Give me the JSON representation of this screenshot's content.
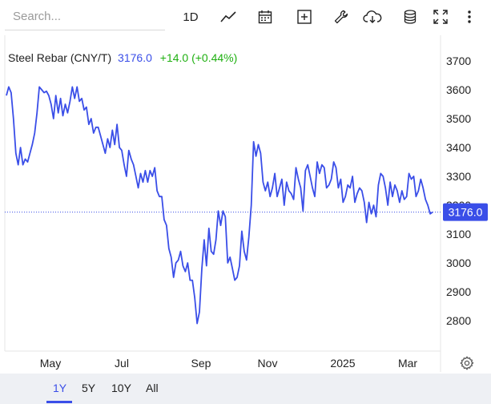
{
  "toolbar": {
    "search_placeholder": "Search...",
    "interval_label": "1D",
    "icons": [
      "line-chart-icon",
      "calendar-icon",
      "add-indicator-icon",
      "wrench-icon",
      "cloud-download-icon",
      "database-icon",
      "fullscreen-icon",
      "more-icon"
    ]
  },
  "header": {
    "name": "Steel Rebar (CNY/T)",
    "price": "3176.0",
    "change": "+14.0 (+0.44%)"
  },
  "colors": {
    "line": "#3a4ee8",
    "change_positive": "#1fb011",
    "price_tag_bg": "#3a4ee8",
    "range_bar_bg": "#eef0f4"
  },
  "ranges": {
    "buttons": [
      "1Y",
      "5Y",
      "10Y",
      "All"
    ],
    "active": "1Y"
  },
  "chart_data": {
    "type": "line",
    "title": "Steel Rebar (CNY/T)",
    "x_tick_labels": [
      "May",
      "Jul",
      "Sep",
      "Nov",
      "2025",
      "Mar"
    ],
    "y_ticks": [
      2800,
      2900,
      3000,
      3100,
      3200,
      3300,
      3400,
      3500,
      3600,
      3700
    ],
    "ylim": [
      2740,
      3740
    ],
    "last_value_label": "3176.0",
    "last_value": 3176,
    "grid": false,
    "series": [
      {
        "values": [
          3580,
          3610,
          3590,
          3500,
          3380,
          3340,
          3400,
          3340,
          3360,
          3350,
          3380,
          3410,
          3450,
          3520,
          3610,
          3600,
          3590,
          3595,
          3580,
          3550,
          3500,
          3580,
          3520,
          3570,
          3510,
          3550,
          3520,
          3560,
          3610,
          3570,
          3610,
          3560,
          3570,
          3530,
          3540,
          3480,
          3500,
          3450,
          3470,
          3470,
          3440,
          3410,
          3380,
          3430,
          3400,
          3460,
          3410,
          3480,
          3400,
          3390,
          3340,
          3300,
          3390,
          3360,
          3340,
          3300,
          3260,
          3310,
          3280,
          3320,
          3280,
          3320,
          3300,
          3330,
          3250,
          3230,
          3230,
          3150,
          3130,
          3050,
          3020,
          2950,
          3000,
          3010,
          3040,
          2990,
          2970,
          3000,
          2940,
          2940,
          2880,
          2790,
          2830,
          2980,
          3080,
          2990,
          3120,
          3040,
          3030,
          3080,
          3180,
          3130,
          3180,
          3160,
          3000,
          3020,
          2980,
          2940,
          2950,
          2990,
          3110,
          3040,
          3010,
          3090,
          3200,
          3420,
          3370,
          3410,
          3380,
          3280,
          3250,
          3280,
          3230,
          3260,
          3310,
          3230,
          3260,
          3290,
          3200,
          3280,
          3250,
          3240,
          3220,
          3330,
          3290,
          3260,
          3180,
          3320,
          3340,
          3300,
          3260,
          3230,
          3350,
          3310,
          3340,
          3330,
          3260,
          3270,
          3290,
          3350,
          3330,
          3260,
          3290,
          3210,
          3230,
          3270,
          3260,
          3300,
          3210,
          3240,
          3260,
          3250,
          3210,
          3140,
          3210,
          3170,
          3200,
          3160,
          3270,
          3310,
          3300,
          3260,
          3200,
          3280,
          3230,
          3270,
          3250,
          3210,
          3250,
          3220,
          3230,
          3310,
          3290,
          3300,
          3230,
          3250,
          3290,
          3260,
          3220,
          3200,
          3170,
          3176
        ]
      }
    ]
  }
}
